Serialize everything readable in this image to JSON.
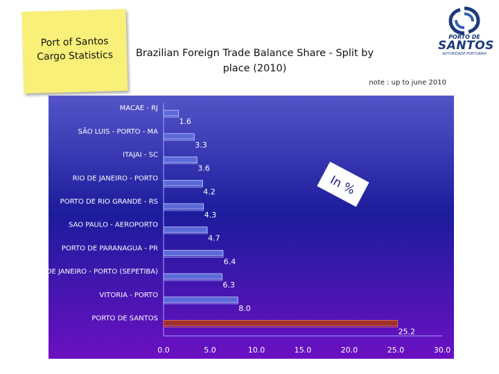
{
  "header": {
    "sticky_line1": "Port of Santos",
    "sticky_line2": "Cargo Statistics",
    "title_line1": "Brazilian Foreign Trade Balance Share - Split by",
    "title_line2": "place (2010)",
    "note": "note : up to june 2010",
    "logo_line1": "PORTO DE",
    "logo_line2": "SANTOS",
    "logo_line3": "AUTORIDADE PORTUÁRIA"
  },
  "chart_data": {
    "type": "bar",
    "orientation": "horizontal",
    "categories": [
      "MACAE - RJ",
      "SÃO LUIS - PORTO - MA",
      "ITAJAI - SC",
      "RIO DE JANEIRO - PORTO",
      "PORTO DE RIO GRANDE - RS",
      "SAO PAULO - AEROPORTO",
      "PORTO DE PARANAGUA - PR",
      "RIO DE JANEIRO - PORTO (SEPETIBA)",
      "VITORIA - PORTO",
      "PORTO DE SANTOS"
    ],
    "values": [
      1.6,
      3.3,
      3.6,
      4.2,
      4.3,
      4.7,
      6.4,
      6.3,
      8.0,
      25.2
    ],
    "value_labels": [
      "1.6",
      "3.3",
      "3.6",
      "4.2",
      "4.3",
      "4.7",
      "6.4",
      "6.3",
      "8.0",
      "25.2"
    ],
    "x_ticks": [
      "0.0",
      "5.0",
      "10.0",
      "15.0",
      "20.0",
      "25.0",
      "30.0"
    ],
    "xlim": [
      0,
      30
    ],
    "unit_annotation": "In %",
    "highlight_category": "PORTO DE SANTOS",
    "colors": {
      "bg_top": "#4f4fc8",
      "bg_mid": "#1a1a9a",
      "bg_bottom": "#6a0ec0",
      "bar": "#5a6ad8",
      "bar_highlight": "#a0302a",
      "text": "#ffffff"
    }
  }
}
